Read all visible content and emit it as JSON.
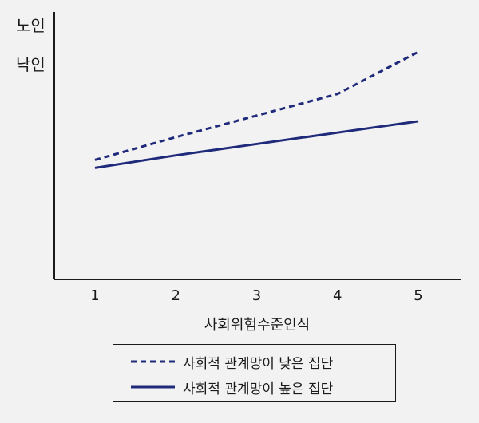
{
  "chart_data": {
    "type": "line",
    "ylabel_lines": [
      "노인",
      "낙인"
    ],
    "xlabel": "사회위험수준인식",
    "x": [
      1,
      2,
      3,
      4,
      5
    ],
    "xlim": [
      0.5,
      5.5
    ],
    "ylim": [
      0,
      10
    ],
    "grid": false,
    "legend_position": "bottom",
    "series": [
      {
        "name": "사회적 관계망이 낮은 집단",
        "style": "dashed",
        "color": "#1f2a7a",
        "values": [
          5.25,
          6.25,
          7.2,
          8.15,
          10.0
        ]
      },
      {
        "name": "사회적 관계망이 높은 집단",
        "style": "solid",
        "color": "#1f2a7a",
        "values": [
          4.9,
          5.45,
          5.95,
          6.45,
          6.95
        ]
      }
    ]
  }
}
